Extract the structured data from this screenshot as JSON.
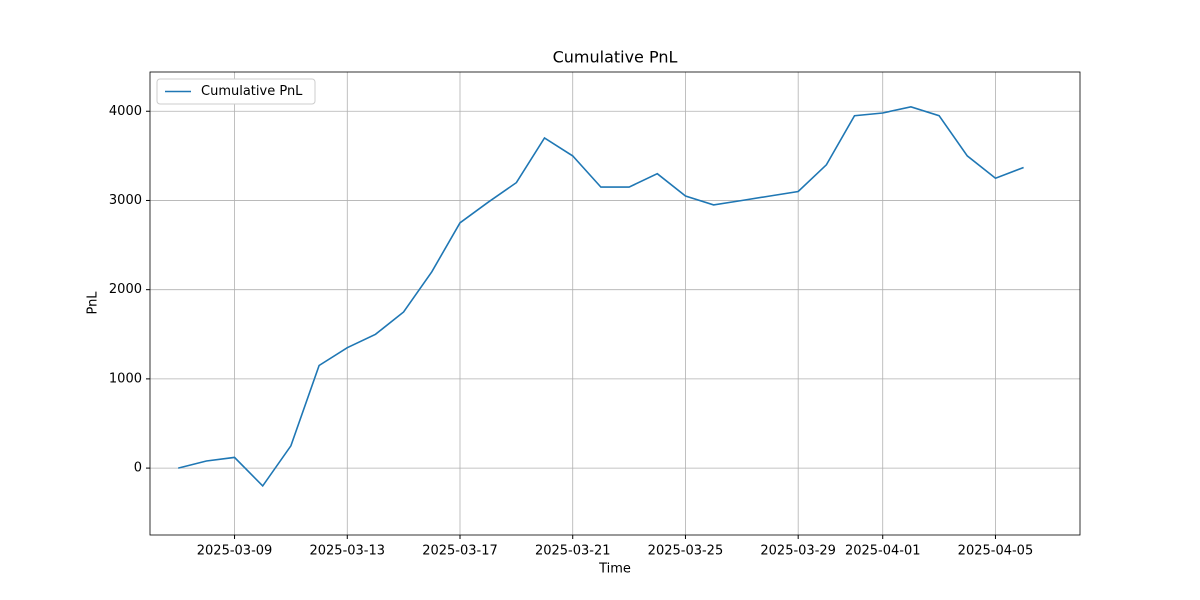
{
  "chart_data": {
    "type": "line",
    "title": "Cumulative PnL",
    "xlabel": "Time",
    "ylabel": "PnL",
    "x": [
      "2025-03-07",
      "2025-03-08",
      "2025-03-09",
      "2025-03-10",
      "2025-03-11",
      "2025-03-12",
      "2025-03-13",
      "2025-03-14",
      "2025-03-15",
      "2025-03-16",
      "2025-03-17",
      "2025-03-18",
      "2025-03-19",
      "2025-03-20",
      "2025-03-21",
      "2025-03-22",
      "2025-03-23",
      "2025-03-24",
      "2025-03-25",
      "2025-03-26",
      "2025-03-27",
      "2025-03-28",
      "2025-03-29",
      "2025-03-30",
      "2025-03-31",
      "2025-04-01",
      "2025-04-02",
      "2025-04-03",
      "2025-04-04",
      "2025-04-05",
      "2025-04-06"
    ],
    "series": [
      {
        "name": "Cumulative PnL",
        "color": "#1f77b4",
        "values": [
          0,
          80,
          120,
          -200,
          250,
          1150,
          1350,
          1500,
          1750,
          2200,
          2750,
          2980,
          3200,
          3700,
          3500,
          3150,
          3150,
          3300,
          3050,
          2950,
          3000,
          3050,
          3100,
          3400,
          3950,
          3980,
          4050,
          3950,
          3500,
          3250,
          3370
        ]
      }
    ],
    "xlim": [
      "2025-03-06",
      "2025-04-08"
    ],
    "xticks": [
      "2025-03-09",
      "2025-03-13",
      "2025-03-17",
      "2025-03-21",
      "2025-03-25",
      "2025-03-29",
      "2025-04-01",
      "2025-04-05"
    ],
    "ylim": [
      -750,
      4440
    ],
    "yticks": [
      0,
      1000,
      2000,
      3000,
      4000
    ],
    "grid": true,
    "legend": "upper-left"
  }
}
